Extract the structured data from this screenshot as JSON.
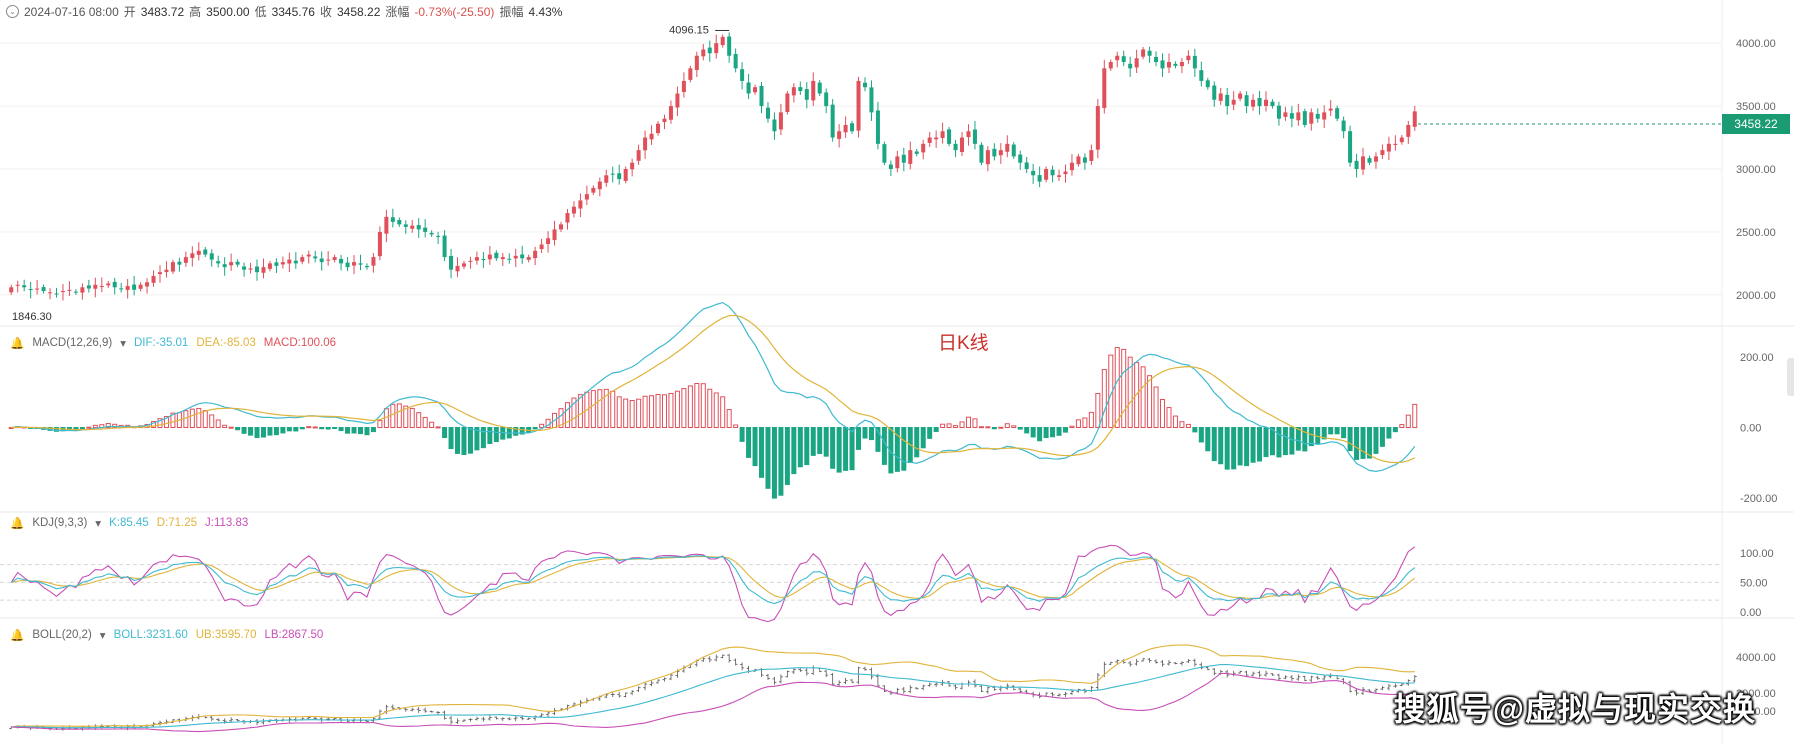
{
  "header": {
    "date": "2024-07-16 08:00",
    "open_label": "开",
    "open": "3483.72",
    "high_label": "高",
    "high": "3500.00",
    "low_label": "低",
    "low": "3345.76",
    "close_label": "收",
    "close": "3458.22",
    "change_label": "涨幅",
    "change": "-0.73%(-25.50)",
    "amplitude_label": "振幅",
    "amplitude": "4.43%"
  },
  "current_price": "3458.22",
  "main_label": "日K线",
  "watermark": "搜狐号@虚拟与现实交换",
  "colors": {
    "up": "#e0505a",
    "down": "#1aa583",
    "dif": "#3fbad0",
    "dea": "#e0b43a",
    "macd": "#e0505a",
    "k": "#3fbad0",
    "d": "#e0b43a",
    "j": "#c84fb7",
    "boll": "#3fbad0",
    "ub": "#e0b43a",
    "lb": "#c84fb7",
    "grid": "#f2f2f2"
  },
  "indicators": {
    "macd": {
      "name": "MACD(12,26,9)",
      "dif": "DIF:-35.01",
      "dea": "DEA:-85.03",
      "macd": "MACD:100.06",
      "ticks": [
        "200.00",
        "0.00",
        "-200.00"
      ]
    },
    "kdj": {
      "name": "KDJ(9,3,3)",
      "k": "K:85.45",
      "d": "D:71.25",
      "j": "J:113.83",
      "ticks": [
        "100.00",
        "50.00",
        "0.00"
      ]
    },
    "boll": {
      "name": "BOLL(20,2)",
      "boll": "BOLL:3231.60",
      "ub": "UB:3595.70",
      "lb": "LB:2867.50",
      "ticks": [
        "4000.00",
        "3000.00",
        "2500.00"
      ]
    }
  },
  "chart_data": {
    "type": "candlestick",
    "max_label": "4096.15",
    "min_label": "1846.30",
    "price_axis_ticks": [
      "4000.00",
      "3500.00",
      "3000.00",
      "2500.00",
      "2000.00"
    ],
    "price_range": [
      1800,
      4200
    ],
    "candles_close": [
      2060,
      2080,
      2060,
      2040,
      2050,
      2030,
      2020,
      2010,
      2030,
      2040,
      2020,
      2060,
      2050,
      2080,
      2070,
      2090,
      2060,
      2050,
      2070,
      2040,
      2080,
      2100,
      2150,
      2180,
      2200,
      2260,
      2240,
      2300,
      2330,
      2350,
      2320,
      2280,
      2250,
      2220,
      2260,
      2240,
      2200,
      2210,
      2180,
      2220,
      2250,
      2230,
      2260,
      2280,
      2250,
      2300,
      2320,
      2290,
      2260,
      2280,
      2300,
      2250,
      2220,
      2260,
      2240,
      2220,
      2300,
      2500,
      2620,
      2580,
      2560,
      2540,
      2550,
      2520,
      2500,
      2480,
      2460,
      2300,
      2200,
      2230,
      2250,
      2270,
      2300,
      2280,
      2320,
      2290,
      2300,
      2280,
      2310,
      2290,
      2300,
      2350,
      2400,
      2450,
      2520,
      2560,
      2650,
      2700,
      2750,
      2800,
      2850,
      2900,
      2950,
      2960,
      2920,
      3000,
      3050,
      3150,
      3250,
      3280,
      3360,
      3400,
      3500,
      3600,
      3700,
      3800,
      3900,
      3950,
      3920,
      4000,
      4050,
      3900,
      3800,
      3700,
      3600,
      3650,
      3500,
      3400,
      3300,
      3450,
      3600,
      3650,
      3620,
      3550,
      3700,
      3600,
      3500,
      3250,
      3300,
      3350,
      3300,
      3700,
      3650,
      3450,
      3200,
      3050,
      3000,
      3100,
      3050,
      3150,
      3120,
      3200,
      3250,
      3250,
      3300,
      3200,
      3150,
      3250,
      3300,
      3200,
      3050,
      3150,
      3100,
      3150,
      3200,
      3100,
      3050,
      3000,
      2950,
      2900,
      3000,
      2950,
      2950,
      2980,
      3050,
      3100,
      3050,
      3150,
      3500,
      3800,
      3850,
      3900,
      3850,
      3800,
      3880,
      3950,
      3900,
      3850,
      3800,
      3850,
      3820,
      3850,
      3900,
      3800,
      3700,
      3650,
      3550,
      3600,
      3500,
      3550,
      3600,
      3500,
      3550,
      3500,
      3550,
      3500,
      3400,
      3450,
      3400,
      3450,
      3350,
      3450,
      3400,
      3450,
      3480,
      3400,
      3300,
      3050,
      3000,
      3100,
      3050,
      3100,
      3150,
      3200,
      3200,
      3250,
      3350,
      3458
    ]
  }
}
